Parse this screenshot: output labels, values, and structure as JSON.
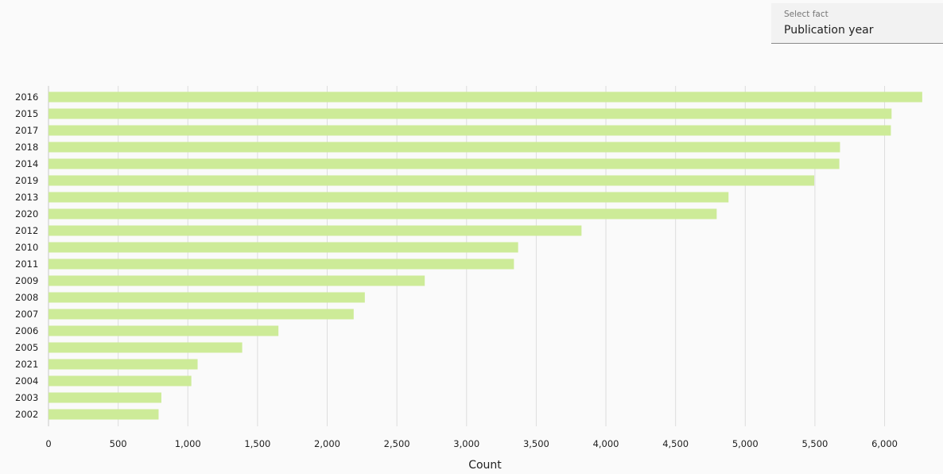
{
  "fact_selector": {
    "label": "Select fact",
    "value": "Publication year"
  },
  "chart_data": {
    "type": "bar",
    "orientation": "horizontal",
    "categories": [
      "2016",
      "2015",
      "2017",
      "2018",
      "2014",
      "2019",
      "2013",
      "2020",
      "2012",
      "2010",
      "2011",
      "2009",
      "2008",
      "2007",
      "2006",
      "2005",
      "2021",
      "2004",
      "2003",
      "2002"
    ],
    "values": [
      6270,
      6050,
      6045,
      5680,
      5675,
      5495,
      4880,
      4795,
      3825,
      3370,
      3340,
      2700,
      2270,
      2190,
      1650,
      1390,
      1070,
      1025,
      810,
      790
    ],
    "xlabel": "Count",
    "ylabel": "",
    "xlim": [
      0,
      6300
    ],
    "xticks": [
      0,
      500,
      1000,
      1500,
      2000,
      2500,
      3000,
      3500,
      4000,
      4500,
      5000,
      5500,
      6000
    ],
    "xtick_labels": [
      "0",
      "500",
      "1,000",
      "1,500",
      "2,000",
      "2,500",
      "3,000",
      "3,500",
      "4,000",
      "4,500",
      "5,000",
      "5,500",
      "6,000"
    ],
    "bar_color": "#cdeb98",
    "grid_color": "#dddddd",
    "grid": true
  }
}
